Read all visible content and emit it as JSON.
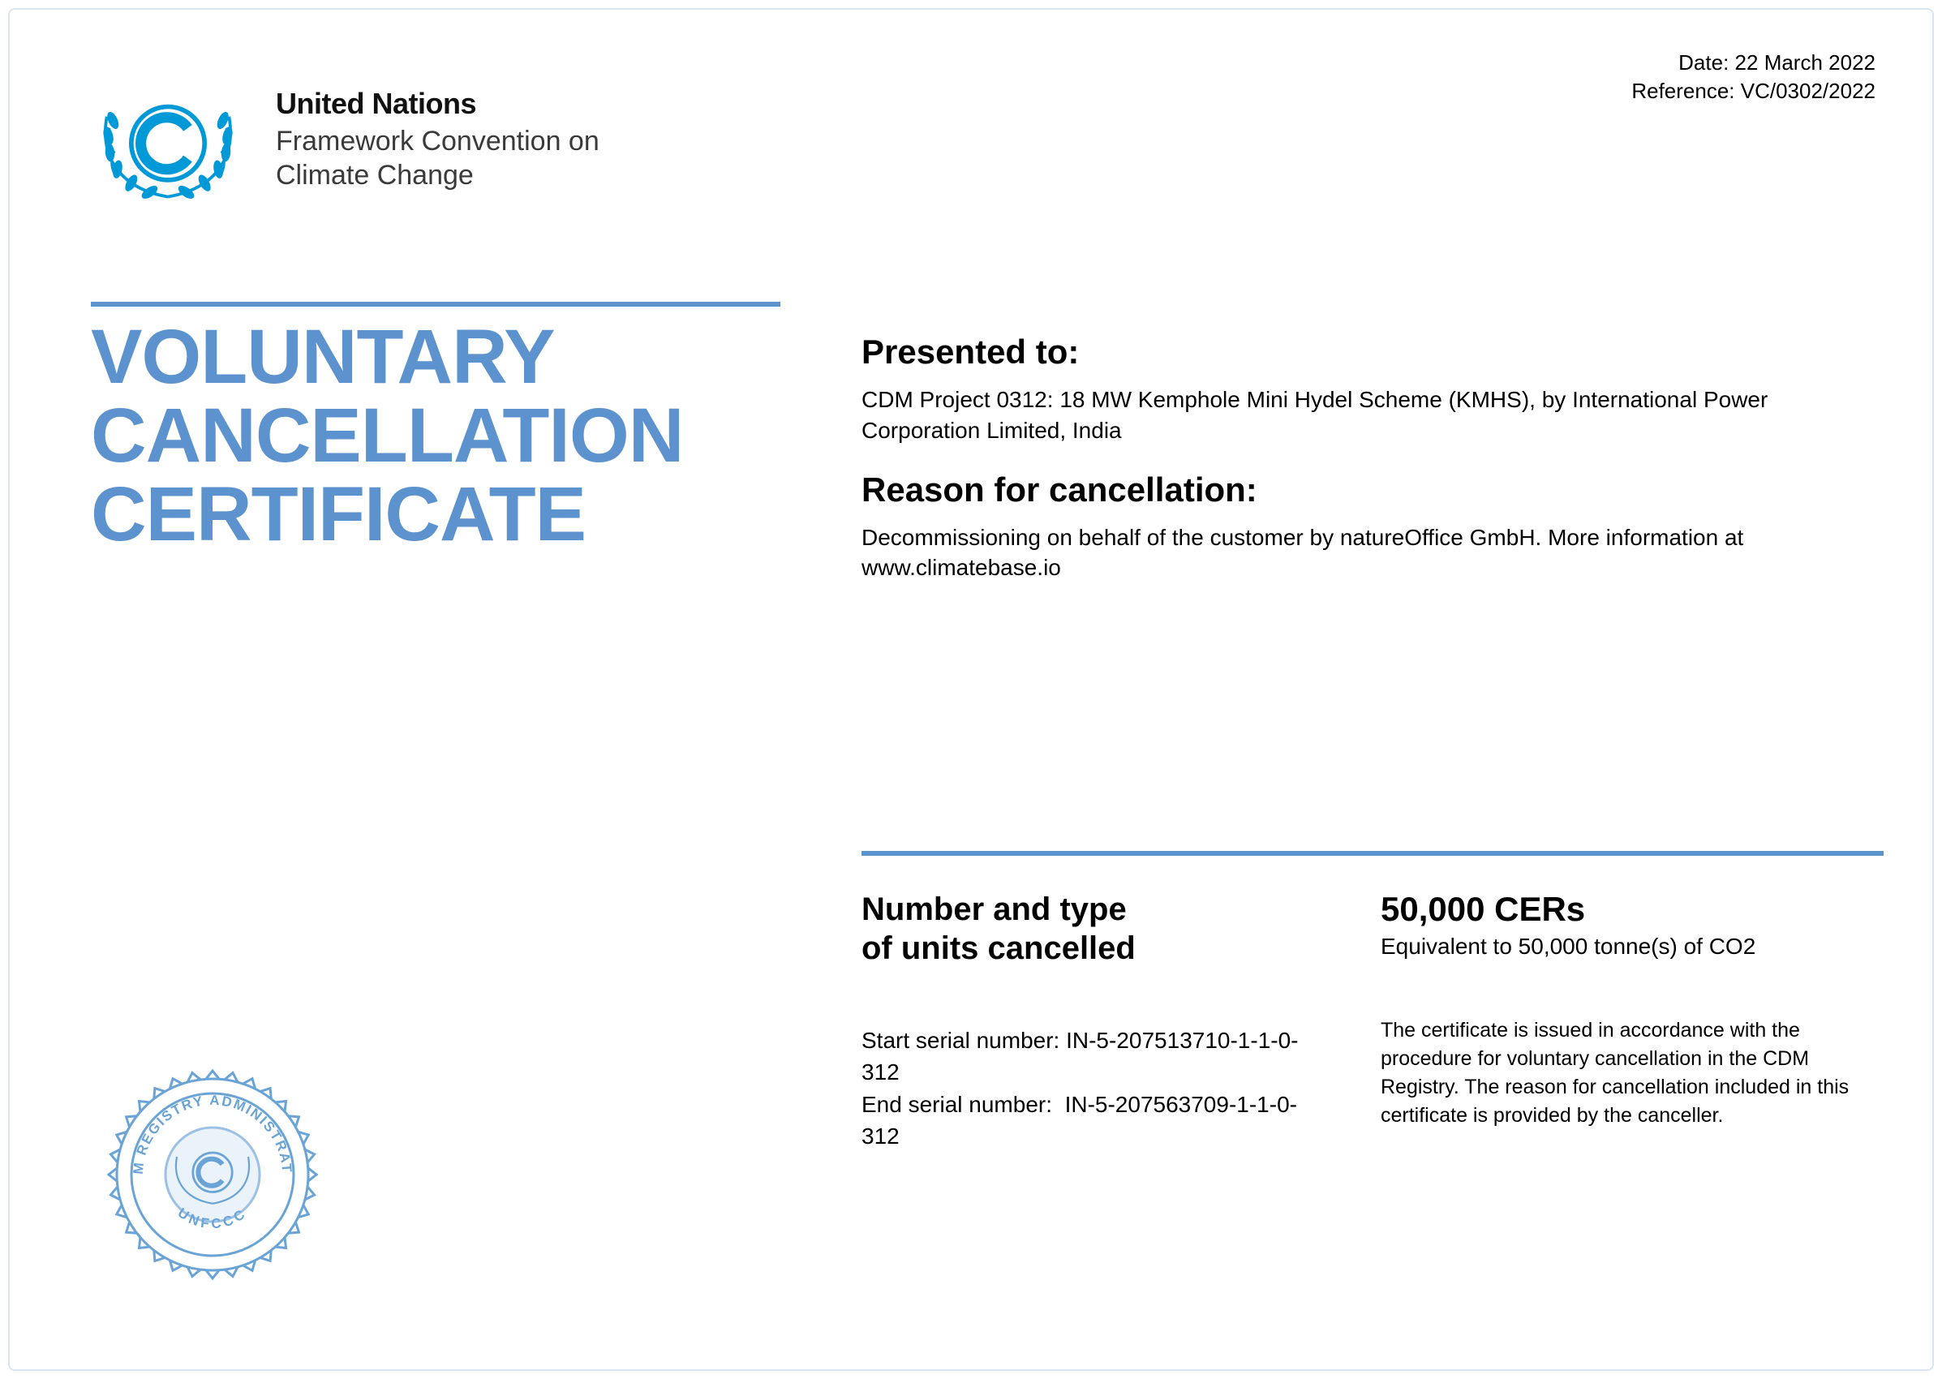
{
  "meta": {
    "date_label": "Date:",
    "date_value": "22 March 2022",
    "ref_label": "Reference:",
    "ref_value": "VC/0302/2022"
  },
  "org": {
    "name": "United Nations",
    "subtitle_line1": "Framework Convention on",
    "subtitle_line2": "Climate Change"
  },
  "title": {
    "line1": "VOLUNTARY",
    "line2": "CANCELLATION",
    "line3": "CERTIFICATE"
  },
  "presented": {
    "heading": "Presented to:",
    "body": "CDM Project 0312: 18 MW Kemphole Mini Hydel Scheme (KMHS), by International Power Corporation Limited, India"
  },
  "reason": {
    "heading": "Reason for cancellation:",
    "body": "Decommissioning on behalf of the customer by natureOffice GmbH. More information at www.climatebase.io"
  },
  "units": {
    "heading_line1": "Number and type",
    "heading_line2": "of units cancelled",
    "cers": "50,000 CERs",
    "equivalent": "Equivalent to 50,000 tonne(s) of CO2",
    "start_label": "Start serial number:",
    "start_value": "IN-5-207513710-1-1-0-312",
    "end_label": "End serial number:",
    "end_value": "IN-5-207563709-1-1-0-312",
    "disclaimer": "The certificate is issued in accordance with the procedure for voluntary cancellation in the CDM Registry. The reason for cancellation included in this certificate is provided by the canceller."
  },
  "seal": {
    "top_text": "CDM REGISTRY ADMINISTRATOR",
    "bottom_text": "UNFCCC"
  },
  "colors": {
    "accent": "#5c93ce",
    "logo_blue": "#0099d8",
    "seal_blue": "#6aa3d6",
    "text": "#000000",
    "background": "#ffffff"
  },
  "typography": {
    "title_fontsize": 95,
    "h2_fontsize": 42,
    "body_fontsize": 28,
    "meta_fontsize": 26,
    "disclaimer_fontsize": 25
  }
}
